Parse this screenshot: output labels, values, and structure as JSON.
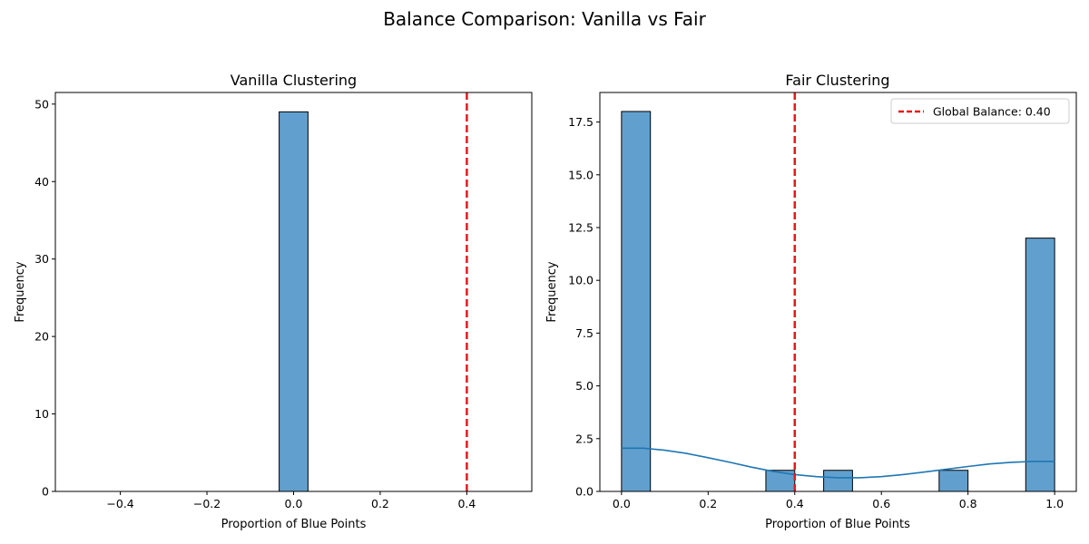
{
  "figure": {
    "title": "Balance Comparison: Vanilla vs Fair"
  },
  "chart_data": [
    {
      "type": "histogram",
      "title": "Vanilla Clustering",
      "xlabel": "Proportion of Blue Points",
      "ylabel": "Frequency",
      "xlim": [
        -0.55,
        0.55
      ],
      "ylim": [
        0,
        51.5
      ],
      "xticks": [
        -0.4,
        -0.2,
        0.0,
        0.2,
        0.4
      ],
      "xtick_labels": [
        "−0.4",
        "−0.2",
        "0.0",
        "0.2",
        "0.4"
      ],
      "yticks": [
        0,
        10,
        20,
        30,
        40,
        50
      ],
      "ytick_labels": [
        "0",
        "10",
        "20",
        "30",
        "40",
        "50"
      ],
      "bin_range": [
        -0.5,
        0.5
      ],
      "bins": [
        {
          "x0": -0.0333,
          "x1": 0.0333,
          "count": 49
        }
      ],
      "reference_line": {
        "x": 0.4,
        "style": "dashed",
        "color": "#e41a1c"
      },
      "bar_color": "#61a0ce",
      "edge_color": "#000000",
      "legend": null
    },
    {
      "type": "histogram",
      "title": "Fair Clustering",
      "xlabel": "Proportion of Blue Points",
      "ylabel": "Frequency",
      "xlim": [
        -0.05,
        1.05
      ],
      "ylim": [
        0,
        18.9
      ],
      "xticks": [
        0.0,
        0.2,
        0.4,
        0.6,
        0.8,
        1.0
      ],
      "xtick_labels": [
        "0.0",
        "0.2",
        "0.4",
        "0.6",
        "0.8",
        "1.0"
      ],
      "yticks": [
        0,
        2.5,
        5,
        7.5,
        10,
        12.5,
        15,
        17.5
      ],
      "ytick_labels": [
        "0.0",
        "2.5",
        "5.0",
        "7.5",
        "10.0",
        "12.5",
        "15.0",
        "17.5"
      ],
      "bins": [
        {
          "x0": 0.0,
          "x1": 0.0667,
          "count": 18
        },
        {
          "x0": 0.3333,
          "x1": 0.4,
          "count": 1
        },
        {
          "x0": 0.4667,
          "x1": 0.5333,
          "count": 1
        },
        {
          "x0": 0.7333,
          "x1": 0.8,
          "count": 1
        },
        {
          "x0": 0.9333,
          "x1": 1.0,
          "count": 12
        }
      ],
      "kde": {
        "x": [
          0.0,
          0.05,
          0.1,
          0.15,
          0.2,
          0.25,
          0.3,
          0.35,
          0.4,
          0.45,
          0.5,
          0.55,
          0.6,
          0.65,
          0.7,
          0.75,
          0.8,
          0.85,
          0.9,
          0.95,
          1.0
        ],
        "y": [
          2.05,
          2.05,
          1.95,
          1.8,
          1.6,
          1.38,
          1.15,
          0.95,
          0.8,
          0.7,
          0.65,
          0.65,
          0.7,
          0.8,
          0.92,
          1.05,
          1.18,
          1.3,
          1.38,
          1.42,
          1.42
        ],
        "color": "#1f77b4"
      },
      "reference_line": {
        "x": 0.4,
        "style": "dashed",
        "color": "#e41a1c"
      },
      "bar_color": "#61a0ce",
      "edge_color": "#000000",
      "legend": {
        "position": "top-right",
        "label": "Global Balance: 0.40"
      }
    }
  ]
}
